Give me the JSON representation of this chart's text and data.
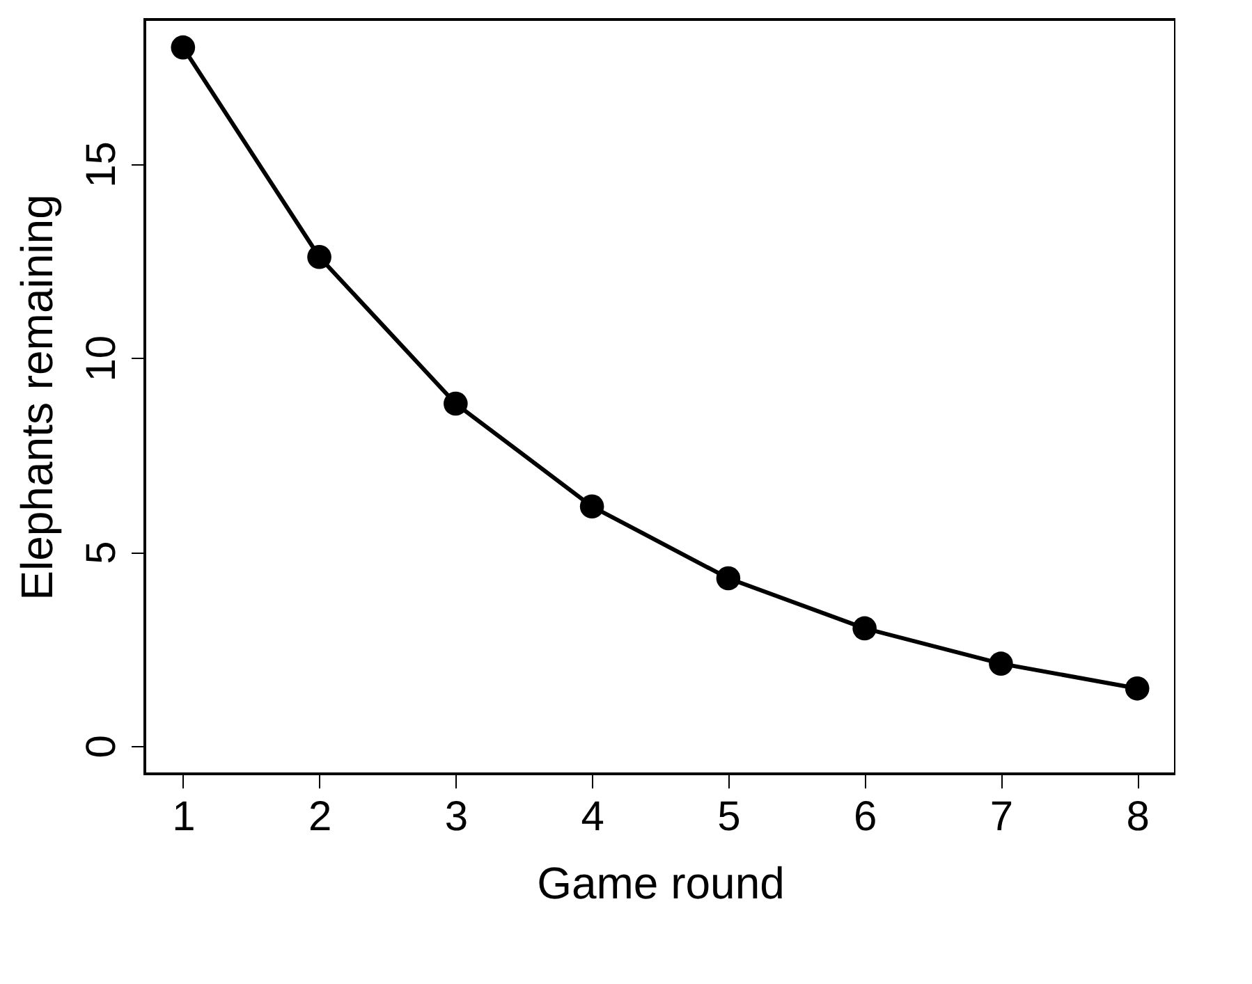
{
  "chart_data": {
    "type": "line",
    "xlabel": "Game round",
    "ylabel": "Elephants remaining",
    "x": [
      1,
      2,
      3,
      4,
      5,
      6,
      7,
      8
    ],
    "series": [
      {
        "color": "#000000",
        "values": [
          18,
          12.6,
          8.82,
          6.17,
          4.32,
          3.03,
          2.12,
          1.48
        ]
      }
    ],
    "xlim": [
      0.72,
      8.28
    ],
    "ylim": [
      -0.72,
      18.72
    ],
    "xticks": [
      1,
      2,
      3,
      4,
      5,
      6,
      7,
      8
    ],
    "yticks": [
      0,
      5,
      10,
      15
    ],
    "marker": "circle",
    "line_style": "solid",
    "grid": false,
    "legend": false
  }
}
